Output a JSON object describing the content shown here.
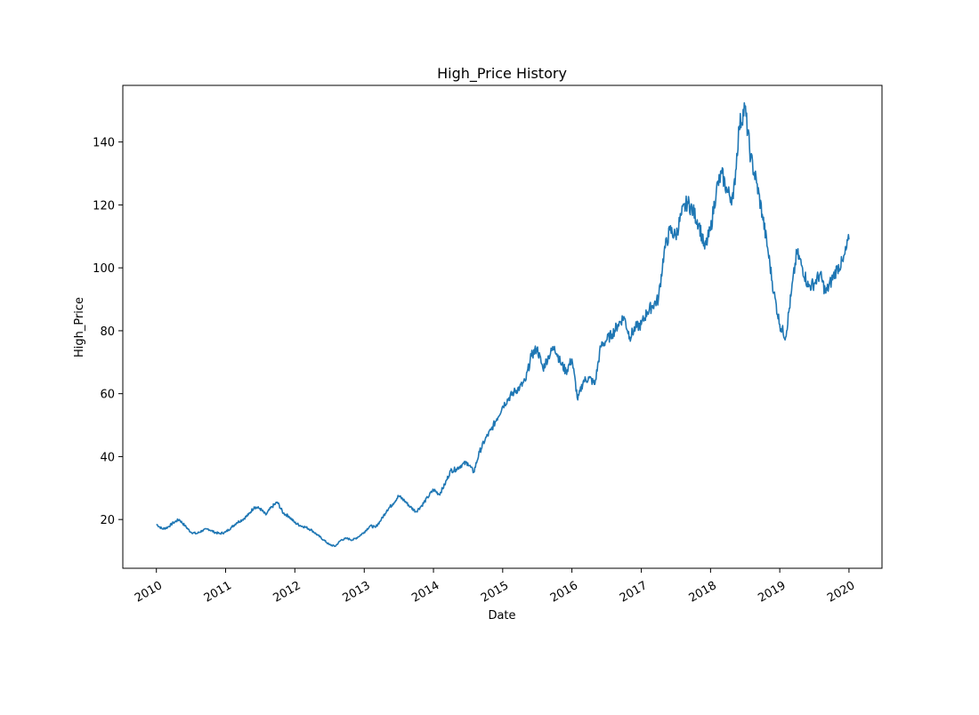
{
  "chart_data": {
    "type": "line",
    "title": "High_Price History",
    "xlabel": "Date",
    "ylabel": "High_Price",
    "x_ticks": [
      "2010",
      "2011",
      "2012",
      "2013",
      "2014",
      "2015",
      "2016",
      "2017",
      "2018",
      "2019",
      "2020"
    ],
    "y_ticks": [
      20,
      40,
      60,
      80,
      100,
      120,
      140
    ],
    "xlim": [
      "2009-07-08",
      "2020-06-23"
    ],
    "ylim": [
      4.5,
      158
    ],
    "grid": false,
    "line_color": "#1f77b4",
    "series": [
      {
        "x": [
          "2010-01-01",
          "2010-02-01",
          "2010-03-01",
          "2010-04-01",
          "2010-05-01",
          "2010-06-01",
          "2010-07-01",
          "2010-08-01",
          "2010-09-01",
          "2010-10-01",
          "2010-11-01",
          "2010-12-01",
          "2011-01-01",
          "2011-02-01",
          "2011-03-01",
          "2011-04-01",
          "2011-05-01",
          "2011-06-01",
          "2011-07-01",
          "2011-08-01",
          "2011-09-01",
          "2011-10-01",
          "2011-11-01",
          "2011-12-01",
          "2012-01-01",
          "2012-02-01",
          "2012-03-01",
          "2012-04-01",
          "2012-05-01",
          "2012-06-01",
          "2012-07-01",
          "2012-08-01",
          "2012-09-01",
          "2012-10-01",
          "2012-11-01",
          "2012-12-01",
          "2013-01-01",
          "2013-02-01",
          "2013-03-01",
          "2013-04-01",
          "2013-05-01",
          "2013-06-01",
          "2013-07-01",
          "2013-08-01",
          "2013-09-01",
          "2013-10-01",
          "2013-11-01",
          "2013-12-01",
          "2014-01-01",
          "2014-02-01",
          "2014-03-01",
          "2014-04-01",
          "2014-05-01",
          "2014-06-01",
          "2014-07-01",
          "2014-08-01",
          "2014-09-01",
          "2014-10-01",
          "2014-11-01",
          "2014-12-01",
          "2015-01-01",
          "2015-02-01",
          "2015-03-01",
          "2015-04-01",
          "2015-05-01",
          "2015-06-01",
          "2015-07-01",
          "2015-08-01",
          "2015-09-01",
          "2015-10-01",
          "2015-11-01",
          "2015-12-01",
          "2016-01-01",
          "2016-02-01",
          "2016-03-01",
          "2016-04-01",
          "2016-05-01",
          "2016-06-01",
          "2016-07-01",
          "2016-08-01",
          "2016-09-01",
          "2016-10-01",
          "2016-11-01",
          "2016-12-01",
          "2017-01-01",
          "2017-02-01",
          "2017-03-01",
          "2017-04-01",
          "2017-05-01",
          "2017-06-01",
          "2017-07-01",
          "2017-08-01",
          "2017-09-01",
          "2017-10-01",
          "2017-11-01",
          "2017-12-01",
          "2018-01-01",
          "2018-02-01",
          "2018-03-01",
          "2018-04-01",
          "2018-05-01",
          "2018-06-01",
          "2018-07-01",
          "2018-08-01",
          "2018-09-01",
          "2018-10-01",
          "2018-11-01",
          "2018-12-01",
          "2019-01-01",
          "2019-02-01",
          "2019-03-01",
          "2019-04-01",
          "2019-05-01",
          "2019-06-01",
          "2019-07-01",
          "2019-08-01",
          "2019-09-01",
          "2019-10-01",
          "2019-11-01",
          "2019-12-01",
          "2020-01-01"
        ],
        "y": [
          18.5,
          17.0,
          17.5,
          19.0,
          20.0,
          18.0,
          16.0,
          15.5,
          16.5,
          17.0,
          16.0,
          15.5,
          16.0,
          17.5,
          19.0,
          20.0,
          21.5,
          24.0,
          23.5,
          21.5,
          24.0,
          25.5,
          22.0,
          21.0,
          19.0,
          18.0,
          17.5,
          16.5,
          15.0,
          13.5,
          12.0,
          11.5,
          13.5,
          14.0,
          13.5,
          14.5,
          16.0,
          18.0,
          17.5,
          20.0,
          23.0,
          25.0,
          27.5,
          26.0,
          24.0,
          22.5,
          24.5,
          27.0,
          29.5,
          28.0,
          31.0,
          35.5,
          36.0,
          37.5,
          38.0,
          35.0,
          41.5,
          45.5,
          48.5,
          52.0,
          56.0,
          58.5,
          60.5,
          62.0,
          64.0,
          72.0,
          74.5,
          68.0,
          72.0,
          75.0,
          70.0,
          67.0,
          71.0,
          58.0,
          64.0,
          65.0,
          63.0,
          75.0,
          77.0,
          79.0,
          82.0,
          84.5,
          78.0,
          81.0,
          82.0,
          86.0,
          88.0,
          90.0,
          105.0,
          112.0,
          110.0,
          117.0,
          121.0,
          118.0,
          114.0,
          106.0,
          112.0,
          125.0,
          130.0,
          124.0,
          122.0,
          145.0,
          151.0,
          135.0,
          127.0,
          117.0,
          105.0,
          92.0,
          82.0,
          78.0,
          91.0,
          105.0,
          100.0,
          94.0,
          95.0,
          98.0,
          92.0,
          96.0,
          100.0,
          102.0,
          109.0
        ]
      }
    ]
  }
}
